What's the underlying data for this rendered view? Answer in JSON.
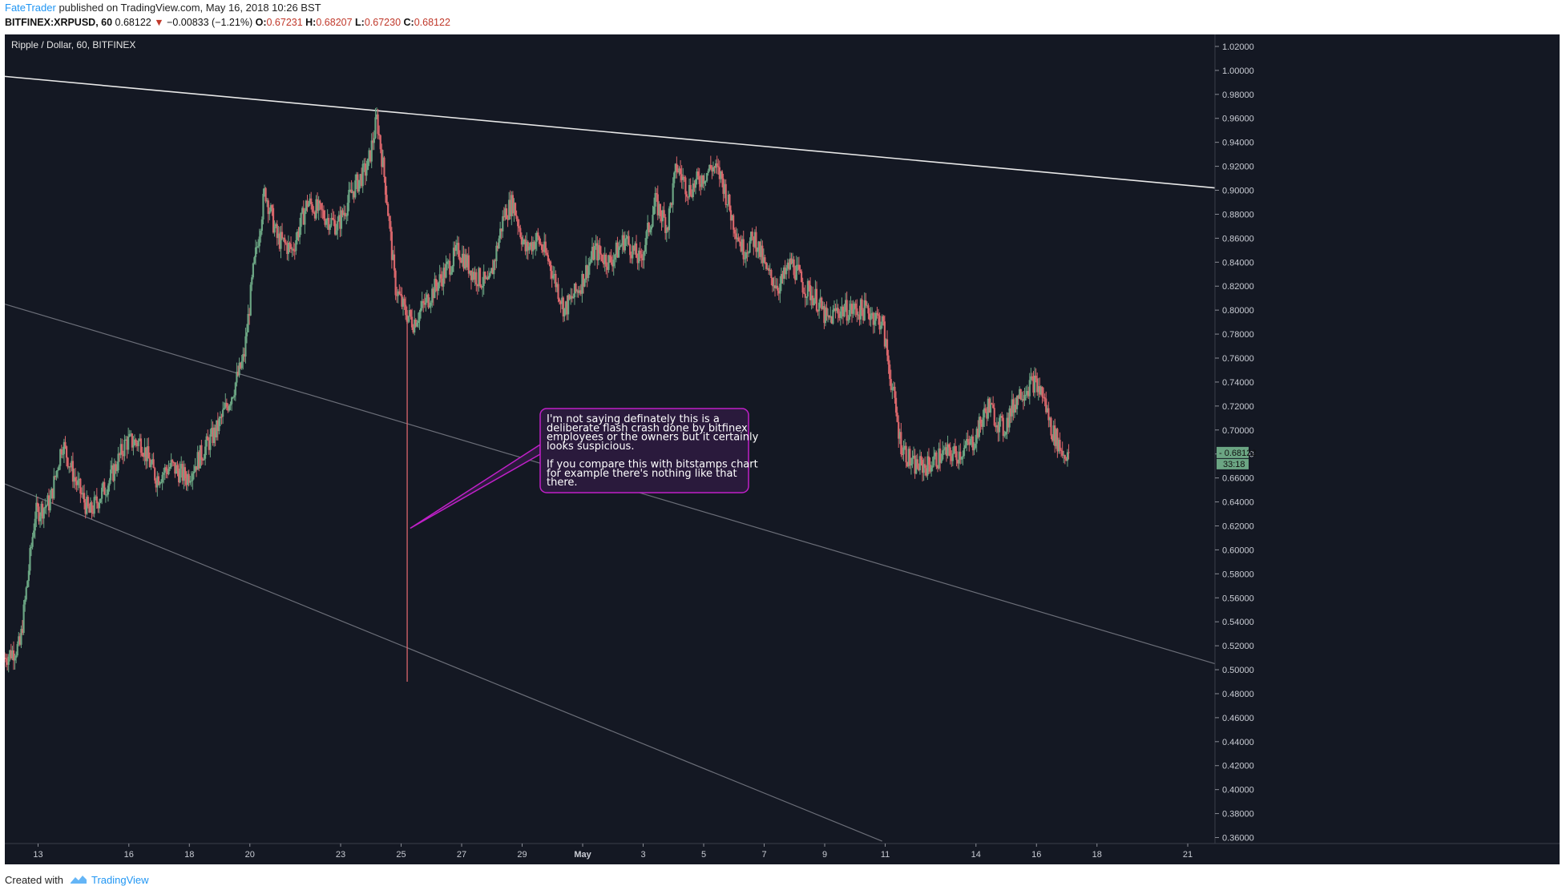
{
  "header": {
    "author": "FateTrader",
    "published_text": "published on TradingView.com, May 16, 2018 10:26 BST",
    "symbol": "BITFINEX:XRPUSD, 60",
    "last": "0.68122",
    "change_arrow": "▼",
    "change": "−0.00833 (−1.21%)",
    "o_label": "O:",
    "o_value": "0.67231",
    "h_label": "H:",
    "h_value": "0.68207",
    "l_label": "L:",
    "l_value": "0.67230",
    "c_label": "C:",
    "c_value": "0.68122"
  },
  "footer": {
    "created_with": "Created with",
    "brand": "TradingView"
  },
  "colors": {
    "background": "#141823",
    "up_candle": "#6ba583",
    "down_candle": "#d9666b",
    "trendline_upper": "#e8e8e8",
    "channel_lines": "#6b6e78",
    "annotation_border": "#c020c8",
    "annotation_fill": "#2a1a3c",
    "price_tag": "#6ba583"
  },
  "chart_data": {
    "type": "candlestick",
    "title": "Ripple / Dollar, 60, BITFINEX",
    "yaxis": {
      "ylim": [
        0.355,
        1.03
      ],
      "ticks": [
        "1.02000",
        "1.00000",
        "0.98000",
        "0.96000",
        "0.94000",
        "0.92000",
        "0.90000",
        "0.88000",
        "0.86000",
        "0.84000",
        "0.82000",
        "0.80000",
        "0.78000",
        "0.76000",
        "0.74000",
        "0.72000",
        "0.70000",
        "0.68000",
        "0.66000",
        "0.64000",
        "0.62000",
        "0.60000",
        "0.58000",
        "0.56000",
        "0.54000",
        "0.52000",
        "0.50000",
        "0.48000",
        "0.46000",
        "0.44000",
        "0.42000",
        "0.40000",
        "0.38000",
        "0.36000"
      ]
    },
    "xaxis": {
      "range_days": [
        0,
        40
      ],
      "ticks": [
        {
          "label": "13",
          "day": 1.1
        },
        {
          "label": "16",
          "day": 4.1
        },
        {
          "label": "18",
          "day": 6.1
        },
        {
          "label": "20",
          "day": 8.1
        },
        {
          "label": "23",
          "day": 11.1
        },
        {
          "label": "25",
          "day": 13.1
        },
        {
          "label": "27",
          "day": 15.1
        },
        {
          "label": "29",
          "day": 17.1
        },
        {
          "label": "May",
          "day": 19.1
        },
        {
          "label": "3",
          "day": 21.1
        },
        {
          "label": "5",
          "day": 23.1
        },
        {
          "label": "7",
          "day": 25.1
        },
        {
          "label": "9",
          "day": 27.1
        },
        {
          "label": "11",
          "day": 29.1
        },
        {
          "label": "14",
          "day": 32.1
        },
        {
          "label": "16",
          "day": 34.1
        },
        {
          "label": "18",
          "day": 36.1
        },
        {
          "label": "21",
          "day": 39.1
        }
      ]
    },
    "price_path": [
      [
        0.0,
        0.51
      ],
      [
        0.5,
        0.52
      ],
      [
        1.0,
        0.63
      ],
      [
        1.5,
        0.64
      ],
      [
        1.9,
        0.69
      ],
      [
        2.3,
        0.66
      ],
      [
        2.8,
        0.63
      ],
      [
        3.5,
        0.66
      ],
      [
        4.0,
        0.69
      ],
      [
        4.5,
        0.69
      ],
      [
        5.0,
        0.66
      ],
      [
        5.5,
        0.67
      ],
      [
        6.0,
        0.66
      ],
      [
        6.5,
        0.68
      ],
      [
        7.0,
        0.7
      ],
      [
        7.5,
        0.73
      ],
      [
        7.9,
        0.76
      ],
      [
        8.2,
        0.83
      ],
      [
        8.6,
        0.9
      ],
      [
        9.0,
        0.86
      ],
      [
        9.5,
        0.85
      ],
      [
        10.0,
        0.89
      ],
      [
        10.5,
        0.88
      ],
      [
        11.0,
        0.87
      ],
      [
        11.5,
        0.9
      ],
      [
        12.0,
        0.92
      ],
      [
        12.3,
        0.96
      ],
      [
        12.6,
        0.9
      ],
      [
        12.9,
        0.82
      ],
      [
        13.2,
        0.8
      ],
      [
        13.5,
        0.79
      ],
      [
        14.0,
        0.81
      ],
      [
        14.5,
        0.83
      ],
      [
        15.0,
        0.85
      ],
      [
        15.5,
        0.83
      ],
      [
        16.0,
        0.82
      ],
      [
        16.5,
        0.88
      ],
      [
        16.8,
        0.89
      ],
      [
        17.2,
        0.85
      ],
      [
        17.6,
        0.86
      ],
      [
        18.0,
        0.84
      ],
      [
        18.5,
        0.8
      ],
      [
        19.0,
        0.82
      ],
      [
        19.5,
        0.85
      ],
      [
        20.0,
        0.84
      ],
      [
        20.5,
        0.86
      ],
      [
        21.0,
        0.84
      ],
      [
        21.5,
        0.89
      ],
      [
        21.9,
        0.87
      ],
      [
        22.2,
        0.92
      ],
      [
        22.6,
        0.9
      ],
      [
        23.0,
        0.91
      ],
      [
        23.4,
        0.92
      ],
      [
        23.7,
        0.91
      ],
      [
        24.0,
        0.88
      ],
      [
        24.4,
        0.85
      ],
      [
        24.8,
        0.86
      ],
      [
        25.2,
        0.83
      ],
      [
        25.6,
        0.82
      ],
      [
        26.0,
        0.84
      ],
      [
        26.4,
        0.82
      ],
      [
        26.8,
        0.81
      ],
      [
        27.2,
        0.79
      ],
      [
        27.5,
        0.8
      ],
      [
        28.0,
        0.8
      ],
      [
        28.5,
        0.8
      ],
      [
        29.0,
        0.79
      ],
      [
        29.3,
        0.74
      ],
      [
        29.6,
        0.69
      ],
      [
        30.0,
        0.67
      ],
      [
        30.5,
        0.67
      ],
      [
        31.0,
        0.68
      ],
      [
        31.5,
        0.68
      ],
      [
        32.0,
        0.69
      ],
      [
        32.5,
        0.72
      ],
      [
        33.0,
        0.7
      ],
      [
        33.5,
        0.73
      ],
      [
        34.0,
        0.74
      ],
      [
        34.3,
        0.73
      ],
      [
        34.6,
        0.7
      ],
      [
        35.0,
        0.68
      ],
      [
        35.2,
        0.68122
      ]
    ],
    "flash_crash": {
      "day": 13.3,
      "low": 0.49,
      "high": 0.8
    },
    "lines": [
      {
        "name": "upper-trendline",
        "points": [
          [
            0.0,
            0.995
          ],
          [
            40.0,
            0.902
          ]
        ]
      },
      {
        "name": "middle-channel-line",
        "points": [
          [
            0.0,
            0.805
          ],
          [
            40.0,
            0.505
          ]
        ]
      },
      {
        "name": "lower-channel-line",
        "points": [
          [
            0.0,
            0.655
          ],
          [
            29.0,
            0.357
          ]
        ]
      }
    ],
    "annotation": {
      "lines": [
        "I'm not saying definately this is a",
        "deliberate flash crash done by bitfinex",
        "employees or the owners but it certainly",
        "looks suspicious.",
        "",
        "If you compare this with bitstamps chart",
        "for example there's nothing like that",
        "there."
      ],
      "anchor": {
        "day": 13.4,
        "price": 0.618
      }
    },
    "last_price": "0.68122",
    "countdown": "33:18"
  }
}
